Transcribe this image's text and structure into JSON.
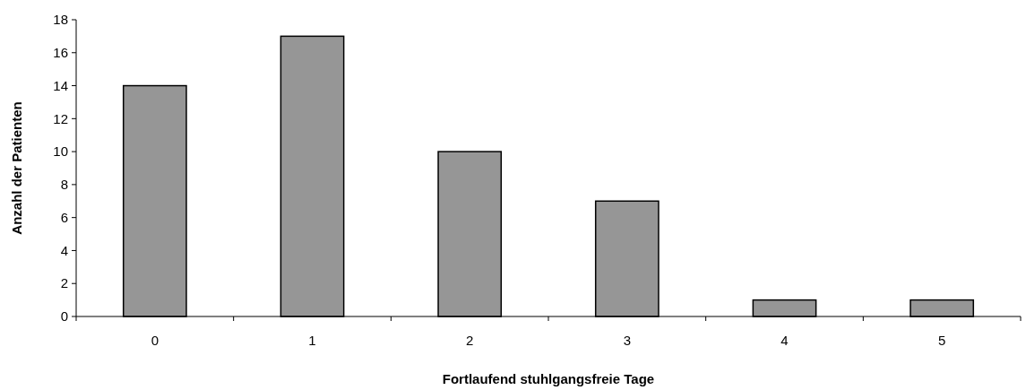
{
  "chart_data": {
    "type": "bar",
    "xlabel": "Fortlaufend stuhlgangsfreie Tage",
    "ylabel": "Anzahl der Patienten",
    "categories": [
      "0",
      "1",
      "2",
      "3",
      "4",
      "5"
    ],
    "values": [
      14,
      17,
      10,
      7,
      1,
      1
    ],
    "color": "#969696",
    "ylim": [
      0,
      18
    ],
    "yticks": [
      0,
      2,
      4,
      6,
      8,
      10,
      12,
      14,
      16,
      18
    ],
    "grid": false
  }
}
